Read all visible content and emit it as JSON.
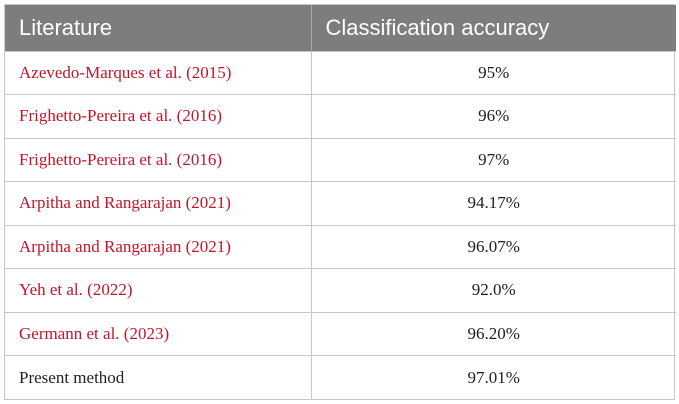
{
  "header": {
    "col_literature": "Literature",
    "col_accuracy": "Classification accuracy"
  },
  "colors": {
    "header_bg": "#7d7d7d",
    "header_text": "#ffffff",
    "citation_text": "#c0162a",
    "plain_text": "#222222"
  },
  "rows": [
    {
      "literature": "Azevedo-Marques et al. (2015)",
      "accuracy": "95%",
      "is_citation": true
    },
    {
      "literature": "Frighetto-Pereira et al. (2016)",
      "accuracy": "96%",
      "is_citation": true
    },
    {
      "literature": "Frighetto-Pereira et al. (2016)",
      "accuracy": "97%",
      "is_citation": true
    },
    {
      "literature": "Arpitha and Rangarajan (2021)",
      "accuracy": "94.17%",
      "is_citation": true
    },
    {
      "literature": "Arpitha and Rangarajan (2021)",
      "accuracy": "96.07%",
      "is_citation": true
    },
    {
      "literature": "Yeh et al. (2022)",
      "accuracy": "92.0%",
      "is_citation": true
    },
    {
      "literature": "Germann et al. (2023)",
      "accuracy": "96.20%",
      "is_citation": true
    },
    {
      "literature": "Present method",
      "accuracy": "97.01%",
      "is_citation": false
    }
  ]
}
